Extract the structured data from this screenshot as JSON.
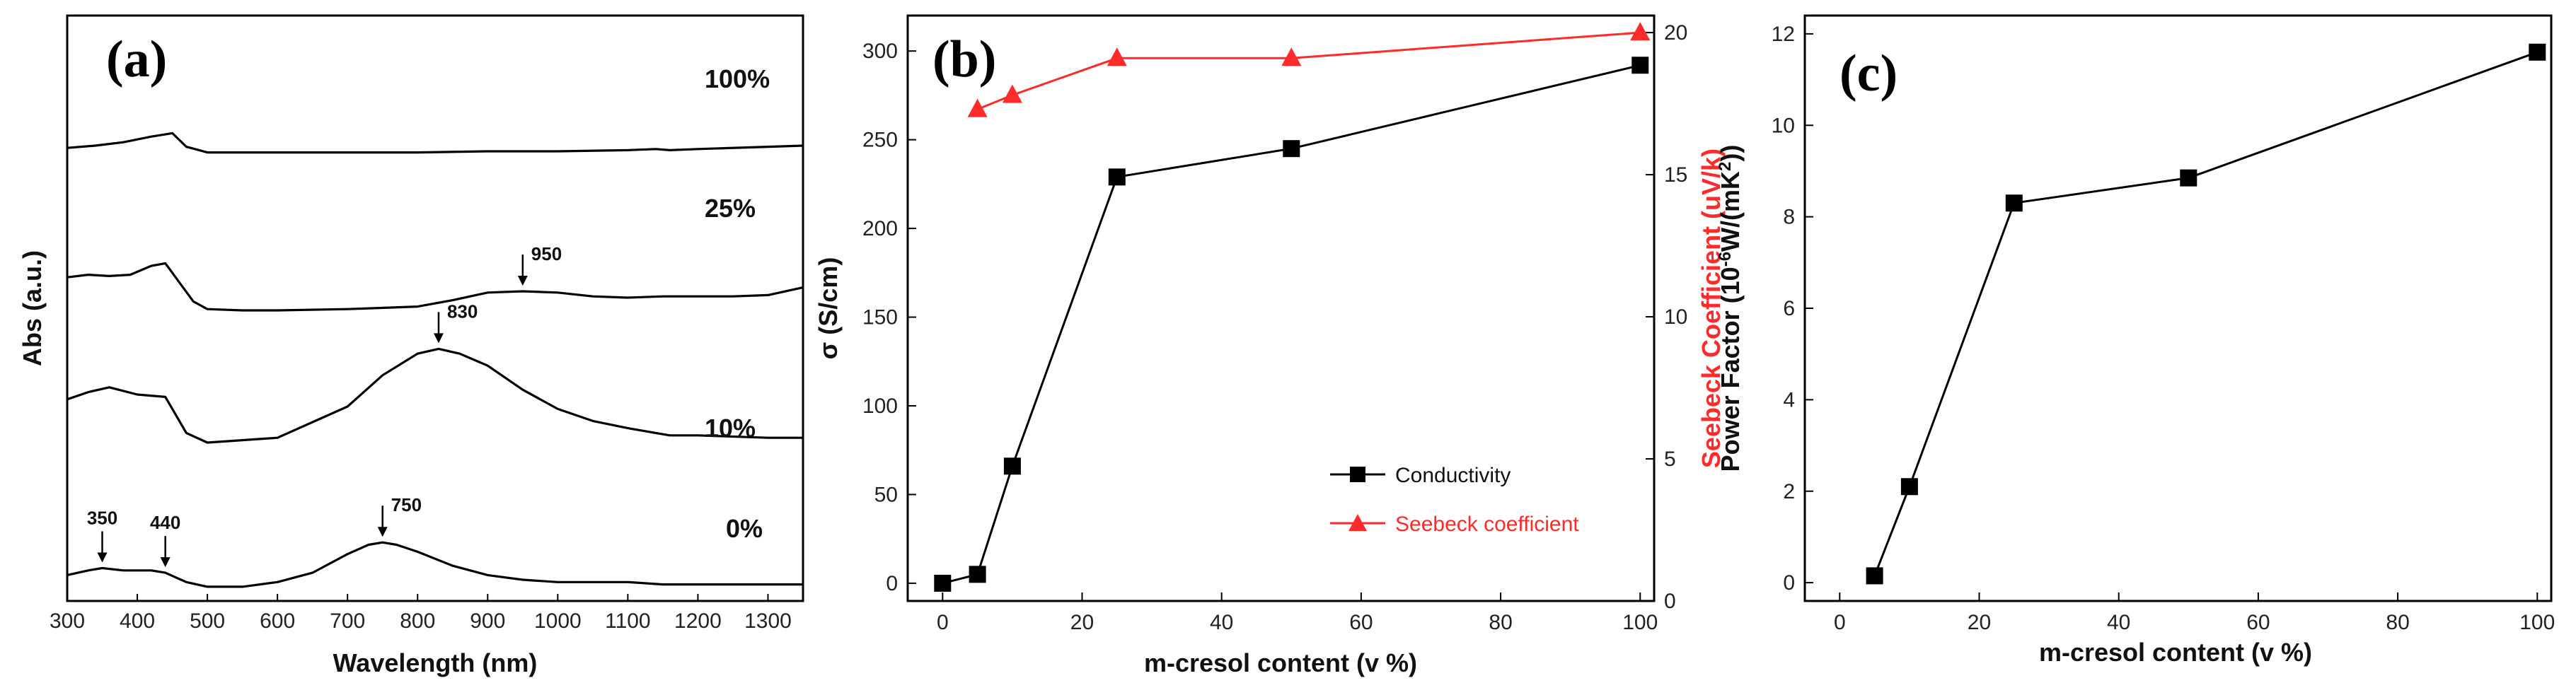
{
  "chart_data": [
    {
      "panel": "(a)",
      "type": "line",
      "xlabel": "Wavelength (nm)",
      "ylabel": "Abs (a.u.)",
      "xlim": [
        300,
        1350
      ],
      "xticks": [
        300,
        400,
        500,
        600,
        700,
        800,
        900,
        1000,
        1100,
        1200,
        1300
      ],
      "series": [
        {
          "name": "100%",
          "x": [
            300,
            340,
            380,
            420,
            450,
            470,
            500,
            600,
            700,
            800,
            900,
            1000,
            1100,
            1140,
            1160,
            1200,
            1300,
            1350
          ],
          "y": [
            0.83,
            0.85,
            0.88,
            0.93,
            0.96,
            0.84,
            0.79,
            0.79,
            0.79,
            0.79,
            0.8,
            0.8,
            0.81,
            0.82,
            0.81,
            0.82,
            0.84,
            0.85
          ]
        },
        {
          "name": "25%",
          "x": [
            300,
            330,
            360,
            390,
            420,
            440,
            460,
            480,
            500,
            550,
            600,
            700,
            800,
            850,
            900,
            950,
            1000,
            1050,
            1100,
            1150,
            1200,
            1250,
            1300,
            1350
          ],
          "y": [
            0.7,
            0.72,
            0.71,
            0.72,
            0.79,
            0.81,
            0.66,
            0.51,
            0.45,
            0.44,
            0.44,
            0.45,
            0.47,
            0.52,
            0.58,
            0.59,
            0.58,
            0.55,
            0.54,
            0.55,
            0.55,
            0.55,
            0.56,
            0.62
          ]
        },
        {
          "name": "10%",
          "x": [
            300,
            330,
            360,
            400,
            440,
            470,
            500,
            600,
            700,
            750,
            800,
            830,
            860,
            900,
            950,
            1000,
            1050,
            1100,
            1140,
            1160,
            1200,
            1300,
            1350
          ],
          "y": [
            0.28,
            0.31,
            0.33,
            0.3,
            0.29,
            0.14,
            0.1,
            0.12,
            0.25,
            0.38,
            0.47,
            0.49,
            0.47,
            0.42,
            0.32,
            0.24,
            0.19,
            0.16,
            0.14,
            0.13,
            0.13,
            0.12,
            0.12
          ]
        },
        {
          "name": "0%",
          "x": [
            300,
            330,
            350,
            380,
            420,
            440,
            470,
            500,
            550,
            600,
            650,
            700,
            730,
            750,
            770,
            800,
            850,
            900,
            950,
            1000,
            1050,
            1100,
            1150,
            1200,
            1250,
            1300,
            1350
          ],
          "y": [
            0.03,
            0.05,
            0.06,
            0.05,
            0.05,
            0.04,
            0.0,
            -0.02,
            -0.02,
            0.0,
            0.04,
            0.12,
            0.16,
            0.17,
            0.16,
            0.13,
            0.07,
            0.03,
            0.01,
            0.0,
            0.0,
            0.0,
            -0.01,
            -0.01,
            -0.01,
            -0.01,
            -0.01
          ]
        }
      ],
      "labels": [
        "100%",
        "25%",
        "10%",
        "0%"
      ],
      "annotations": [
        {
          "text": "950",
          "x": 950,
          "series": "25%"
        },
        {
          "text": "830",
          "x": 830,
          "series": "10%"
        },
        {
          "text": "750",
          "x": 750,
          "series": "0%"
        },
        {
          "text": "350",
          "x": 350,
          "series": "0%"
        },
        {
          "text": "440",
          "x": 440,
          "series": "0%"
        }
      ]
    },
    {
      "panel": "(b)",
      "type": "line",
      "xlabel": "m-cresol content (v %)",
      "ylabel": "σ (S/cm)",
      "y2label": "Seebeck Coefficient (uV/k)",
      "xlim": [
        -5,
        102
      ],
      "ylim": [
        -10,
        320
      ],
      "y2lim": [
        0,
        20.6
      ],
      "xticks": [
        0,
        20,
        40,
        60,
        80,
        100
      ],
      "yticks": [
        0,
        50,
        100,
        150,
        200,
        250,
        300
      ],
      "y2ticks": [
        0,
        5,
        10,
        15,
        20
      ],
      "series": [
        {
          "name": "Conductivity",
          "axis": "left",
          "color": "#000000",
          "marker": "square",
          "x": [
            0,
            5,
            10,
            25,
            50,
            100
          ],
          "y": [
            0,
            5,
            66,
            229,
            245,
            292
          ]
        },
        {
          "name": "Seebeck coefficient",
          "axis": "right",
          "color": "#ff2a2a",
          "marker": "triangle",
          "x": [
            5,
            10,
            25,
            50,
            100
          ],
          "y": [
            17.3,
            17.8,
            19.1,
            19.1,
            20.0
          ]
        }
      ],
      "legend": [
        "Conductivity",
        "Seebeck coefficient"
      ]
    },
    {
      "panel": "(c)",
      "type": "line",
      "xlabel": "m-cresol content (v %)",
      "ylabel": "Power Factor (10",
      "ylabel_sup": "-6",
      "ylabel_mid": "W/(mK",
      "ylabel_sup2": "2",
      "ylabel_end": "))",
      "xlim": [
        -5,
        102
      ],
      "ylim": [
        -0.4,
        12.4
      ],
      "xticks": [
        0,
        20,
        40,
        60,
        80,
        100
      ],
      "yticks": [
        0,
        2,
        4,
        6,
        8,
        10,
        12
      ],
      "series": [
        {
          "name": "Power Factor",
          "color": "#000000",
          "marker": "square",
          "x": [
            5,
            10,
            25,
            50,
            100
          ],
          "y": [
            0.15,
            2.1,
            8.3,
            8.85,
            11.6
          ]
        }
      ]
    }
  ]
}
